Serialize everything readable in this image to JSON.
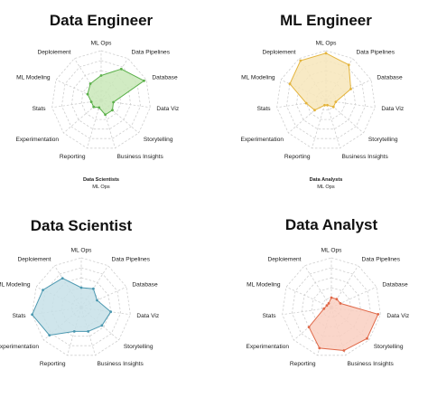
{
  "chart_data": [
    {
      "type": "radar",
      "title": "Data Engineer",
      "categories": [
        "ML Ops",
        "Data Pipelines",
        "Database",
        "Data Viz",
        "Storytelling",
        "Business Insights",
        "Reporting",
        "Experimentation",
        "Stats",
        "ML Modeling",
        "Deploiement"
      ],
      "values": [
        0.5,
        0.75,
        0.95,
        0.25,
        0.3,
        0.3,
        0.15,
        0.2,
        0.2,
        0.3,
        0.4
      ],
      "rmax": 1,
      "color": "#5bb04a",
      "fill": "#c9e7b8",
      "note": {
        "bold": "Data Scientists",
        "regular": "ML Ops"
      }
    },
    {
      "type": "radar",
      "title": "ML Engineer",
      "categories": [
        "ML Ops",
        "Data Pipelines",
        "Database",
        "Data Viz",
        "Storytelling",
        "Business Insights",
        "Reporting",
        "Experimentation",
        "Stats",
        "ML Modeling",
        "Deploiement"
      ],
      "values": [
        0.95,
        0.85,
        0.55,
        0.2,
        0.2,
        0.1,
        0.1,
        0.3,
        0.4,
        0.8,
        0.95
      ],
      "rmax": 1,
      "color": "#e4b43c",
      "fill": "#f7e6bb",
      "note": {
        "bold": "Data Analysts",
        "regular": "ML Ops"
      }
    },
    {
      "type": "radar",
      "title": "Data Scientist",
      "categories": [
        "ML Ops",
        "Data Pipelines",
        "Database",
        "Data Viz",
        "Storytelling",
        "Business Insights",
        "Reporting",
        "Experimentation",
        "Stats",
        "ML Modeling",
        "Deploiement"
      ],
      "values": [
        0.4,
        0.45,
        0.35,
        0.6,
        0.55,
        0.5,
        0.5,
        0.85,
        1.0,
        0.85,
        0.7
      ],
      "rmax": 1,
      "color": "#4b98b0",
      "fill": "#c7e1e8",
      "note": null
    },
    {
      "type": "radar",
      "title": "Data Analyst",
      "categories": [
        "ML Ops",
        "Data Pipelines",
        "Database",
        "Data Viz",
        "Storytelling",
        "Business Insights",
        "Reporting",
        "Experimentation",
        "Stats",
        "ML Modeling",
        "Deploiement"
      ],
      "values": [
        0.2,
        0.2,
        0.2,
        0.95,
        0.95,
        0.9,
        0.85,
        0.6,
        0.15,
        0.1,
        0.1
      ],
      "rmax": 1,
      "color": "#e06848",
      "fill": "#f9cfc1",
      "note": null
    }
  ]
}
